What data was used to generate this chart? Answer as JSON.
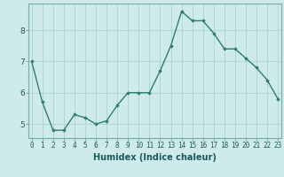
{
  "x": [
    0,
    1,
    2,
    3,
    4,
    5,
    6,
    7,
    8,
    9,
    10,
    11,
    12,
    13,
    14,
    15,
    16,
    17,
    18,
    19,
    20,
    21,
    22,
    23
  ],
  "y": [
    7.0,
    5.7,
    4.8,
    4.8,
    5.3,
    5.2,
    5.0,
    5.1,
    5.6,
    6.0,
    6.0,
    6.0,
    6.7,
    7.5,
    8.6,
    8.3,
    8.3,
    7.9,
    7.4,
    7.4,
    7.1,
    6.8,
    6.4,
    5.8
  ],
  "line_color": "#2e7d6e",
  "marker": "D",
  "marker_size": 1.8,
  "linewidth": 1.0,
  "xlabel": "Humidex (Indice chaleur)",
  "xlabel_fontsize": 7,
  "background_color": "#ceeaea",
  "grid_color": "#b0d8d8",
  "yticks": [
    5,
    6,
    7,
    8
  ],
  "xticks": [
    0,
    1,
    2,
    3,
    4,
    5,
    6,
    7,
    8,
    9,
    10,
    11,
    12,
    13,
    14,
    15,
    16,
    17,
    18,
    19,
    20,
    21,
    22,
    23
  ],
  "xlim": [
    -0.3,
    23.3
  ],
  "ylim": [
    4.55,
    8.85
  ],
  "tick_fontsize": 5.5,
  "ytick_fontsize": 6.5
}
